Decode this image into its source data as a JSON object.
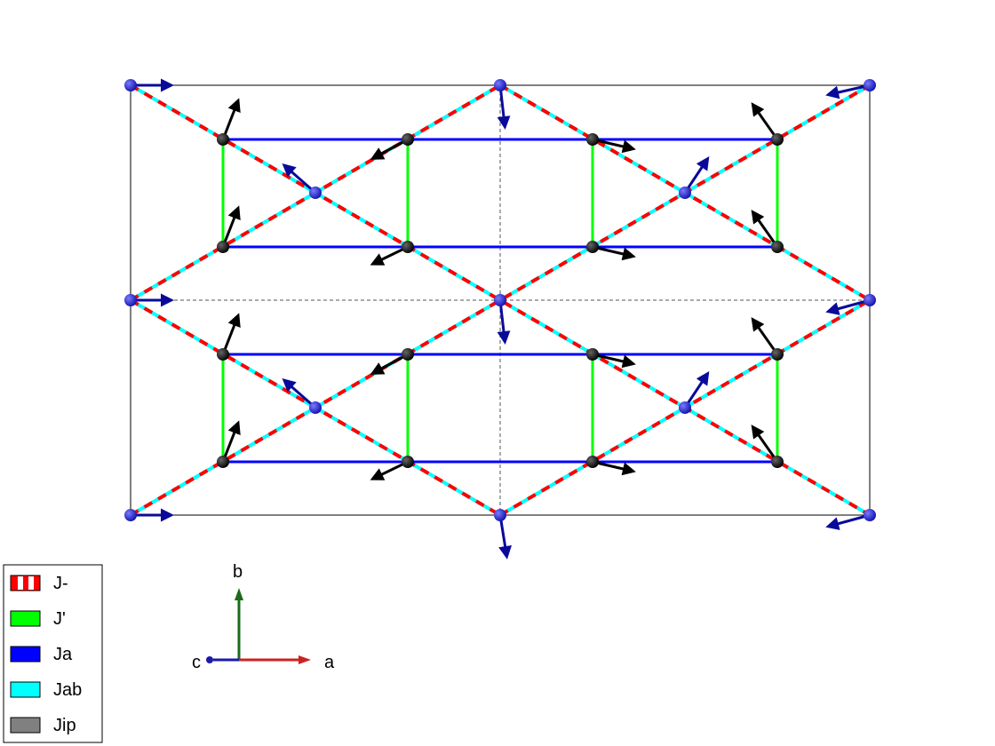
{
  "legend": {
    "items": [
      {
        "label": "J-",
        "color": "#ff0000",
        "stripe": "#ffffff",
        "swatch": "dashed"
      },
      {
        "label": "J'",
        "color": "#00ff00",
        "swatch": "solid"
      },
      {
        "label": "Ja",
        "color": "#0000ff",
        "swatch": "solid"
      },
      {
        "label": "Jab",
        "color": "#00ffff",
        "swatch": "solid"
      },
      {
        "label": "Jip",
        "color": "#808080",
        "swatch": "solid"
      }
    ]
  },
  "axes_indicator": {
    "a_label": "b",
    "b_label": "a",
    "c_label": "c",
    "colors": {
      "a": "#cc2222",
      "b": "#1a6b1a",
      "c": "#1a1aaa"
    }
  },
  "colors": {
    "cell": "#000000",
    "dashed_red": "#ff0000",
    "cyan": "#00ffff",
    "green_bond": "#00ff00",
    "blue_bond": "#0000ff",
    "atom_blue": "#2222cc",
    "atom_black": "#111111",
    "spin_blue": "#0a0a9a",
    "spin_black": "#000000"
  }
}
